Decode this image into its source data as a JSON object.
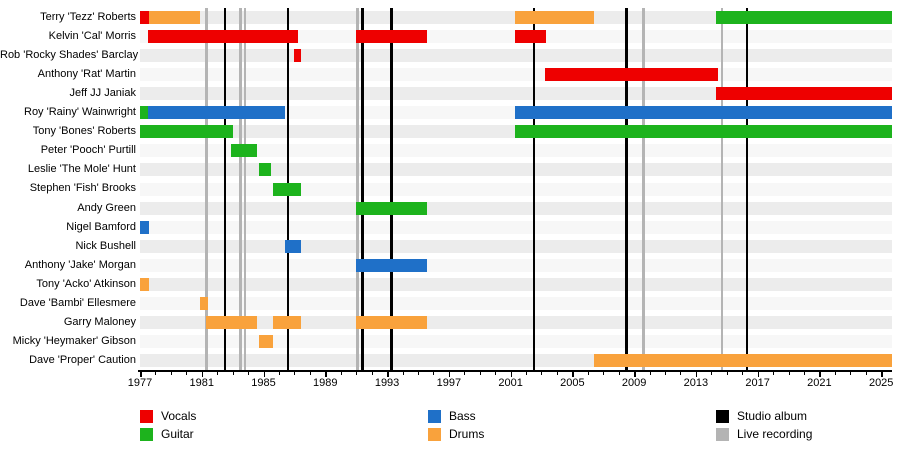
{
  "chart_data": {
    "type": "timeline",
    "title": "",
    "x_axis": {
      "min_year": 1977,
      "max_year": 2025.7,
      "tick_years": [
        1977,
        1981,
        1985,
        1989,
        1993,
        1997,
        2001,
        2005,
        2009,
        2013,
        2017,
        2021,
        2025
      ],
      "minor_tick_interval": 1,
      "grid": false
    },
    "roles": {
      "vocals": {
        "label": "Vocals",
        "color": "#ee0000"
      },
      "guitar": {
        "label": "Guitar",
        "color": "#1db31d"
      },
      "bass": {
        "label": "Bass",
        "color": "#1f70c8"
      },
      "drums": {
        "label": "Drums",
        "color": "#f9a23c"
      }
    },
    "events": {
      "studio_album": {
        "label": "Studio album",
        "color": "#000000",
        "years": [
          1982.5,
          1986.6,
          1991.4,
          1993.3,
          2002.5,
          2008.5,
          2016.3
        ]
      },
      "live_recording": {
        "label": "Live recording",
        "color": "#b4b4b4",
        "years": [
          1981.3,
          1983.5,
          1983.8,
          1991.1,
          2009.6,
          2014.7
        ]
      }
    },
    "legend_columns": [
      [
        "vocals",
        "guitar"
      ],
      [
        "bass",
        "drums"
      ],
      [
        "studio_album",
        "live_recording"
      ]
    ],
    "members": [
      {
        "name": "Terry 'Tezz' Roberts",
        "segments": [
          {
            "role": "vocals",
            "start": 1977.0,
            "end": 1977.6
          },
          {
            "role": "drums",
            "start": 1977.6,
            "end": 1980.9
          },
          {
            "role": "drums",
            "start": 2001.3,
            "end": 2006.4
          },
          {
            "role": "guitar",
            "start": 2014.3,
            "end": 2025.7
          }
        ]
      },
      {
        "name": "Kelvin 'Cal' Morris",
        "segments": [
          {
            "role": "vocals",
            "start": 1977.5,
            "end": 1987.2
          },
          {
            "role": "vocals",
            "start": 1991.0,
            "end": 1995.6
          },
          {
            "role": "vocals",
            "start": 2001.3,
            "end": 2003.3
          }
        ]
      },
      {
        "name": "Rob 'Rocky Shades' Barclay",
        "segments": [
          {
            "role": "vocals",
            "start": 1987.0,
            "end": 1987.4
          }
        ]
      },
      {
        "name": "Anthony 'Rat' Martin",
        "segments": [
          {
            "role": "vocals",
            "start": 2003.2,
            "end": 2014.4
          }
        ]
      },
      {
        "name": "Jeff JJ Janiak",
        "segments": [
          {
            "role": "vocals",
            "start": 2014.3,
            "end": 2025.7
          }
        ]
      },
      {
        "name": "Roy 'Rainy' Wainwright",
        "segments": [
          {
            "role": "guitar",
            "start": 1977.0,
            "end": 1977.5
          },
          {
            "role": "bass",
            "start": 1977.5,
            "end": 1986.4
          },
          {
            "role": "bass",
            "start": 2001.3,
            "end": 2025.7
          }
        ]
      },
      {
        "name": "Tony 'Bones' Roberts",
        "segments": [
          {
            "role": "guitar",
            "start": 1977.0,
            "end": 1983.0
          },
          {
            "role": "guitar",
            "start": 2001.3,
            "end": 2025.7
          }
        ]
      },
      {
        "name": "Peter 'Pooch' Purtill",
        "segments": [
          {
            "role": "guitar",
            "start": 1982.9,
            "end": 1984.6
          }
        ]
      },
      {
        "name": "Leslie 'The Mole' Hunt",
        "segments": [
          {
            "role": "guitar",
            "start": 1984.7,
            "end": 1985.5
          }
        ]
      },
      {
        "name": "Stephen 'Fish' Brooks",
        "segments": [
          {
            "role": "guitar",
            "start": 1985.6,
            "end": 1987.4
          }
        ]
      },
      {
        "name": "Andy Green",
        "segments": [
          {
            "role": "guitar",
            "start": 1991.0,
            "end": 1995.6
          }
        ]
      },
      {
        "name": "Nigel Bamford",
        "segments": [
          {
            "role": "bass",
            "start": 1977.0,
            "end": 1977.6
          }
        ]
      },
      {
        "name": "Nick Bushell",
        "segments": [
          {
            "role": "bass",
            "start": 1986.4,
            "end": 1987.4
          }
        ]
      },
      {
        "name": "Anthony 'Jake' Morgan",
        "segments": [
          {
            "role": "bass",
            "start": 1991.0,
            "end": 1995.6
          }
        ]
      },
      {
        "name": "Tony 'Acko' Atkinson",
        "segments": [
          {
            "role": "drums",
            "start": 1977.0,
            "end": 1977.6
          }
        ]
      },
      {
        "name": "Dave 'Bambi' Ellesmere",
        "segments": [
          {
            "role": "drums",
            "start": 1980.9,
            "end": 1981.4
          }
        ]
      },
      {
        "name": "Garry Maloney",
        "segments": [
          {
            "role": "drums",
            "start": 1981.3,
            "end": 1984.6
          },
          {
            "role": "drums",
            "start": 1985.6,
            "end": 1987.4
          },
          {
            "role": "drums",
            "start": 1991.0,
            "end": 1995.6
          }
        ]
      },
      {
        "name": "Micky 'Heymaker' Gibson",
        "segments": [
          {
            "role": "drums",
            "start": 1984.7,
            "end": 1985.6
          }
        ]
      },
      {
        "name": "Dave 'Proper' Caution",
        "segments": [
          {
            "role": "drums",
            "start": 2006.4,
            "end": 2025.7
          }
        ]
      }
    ]
  }
}
